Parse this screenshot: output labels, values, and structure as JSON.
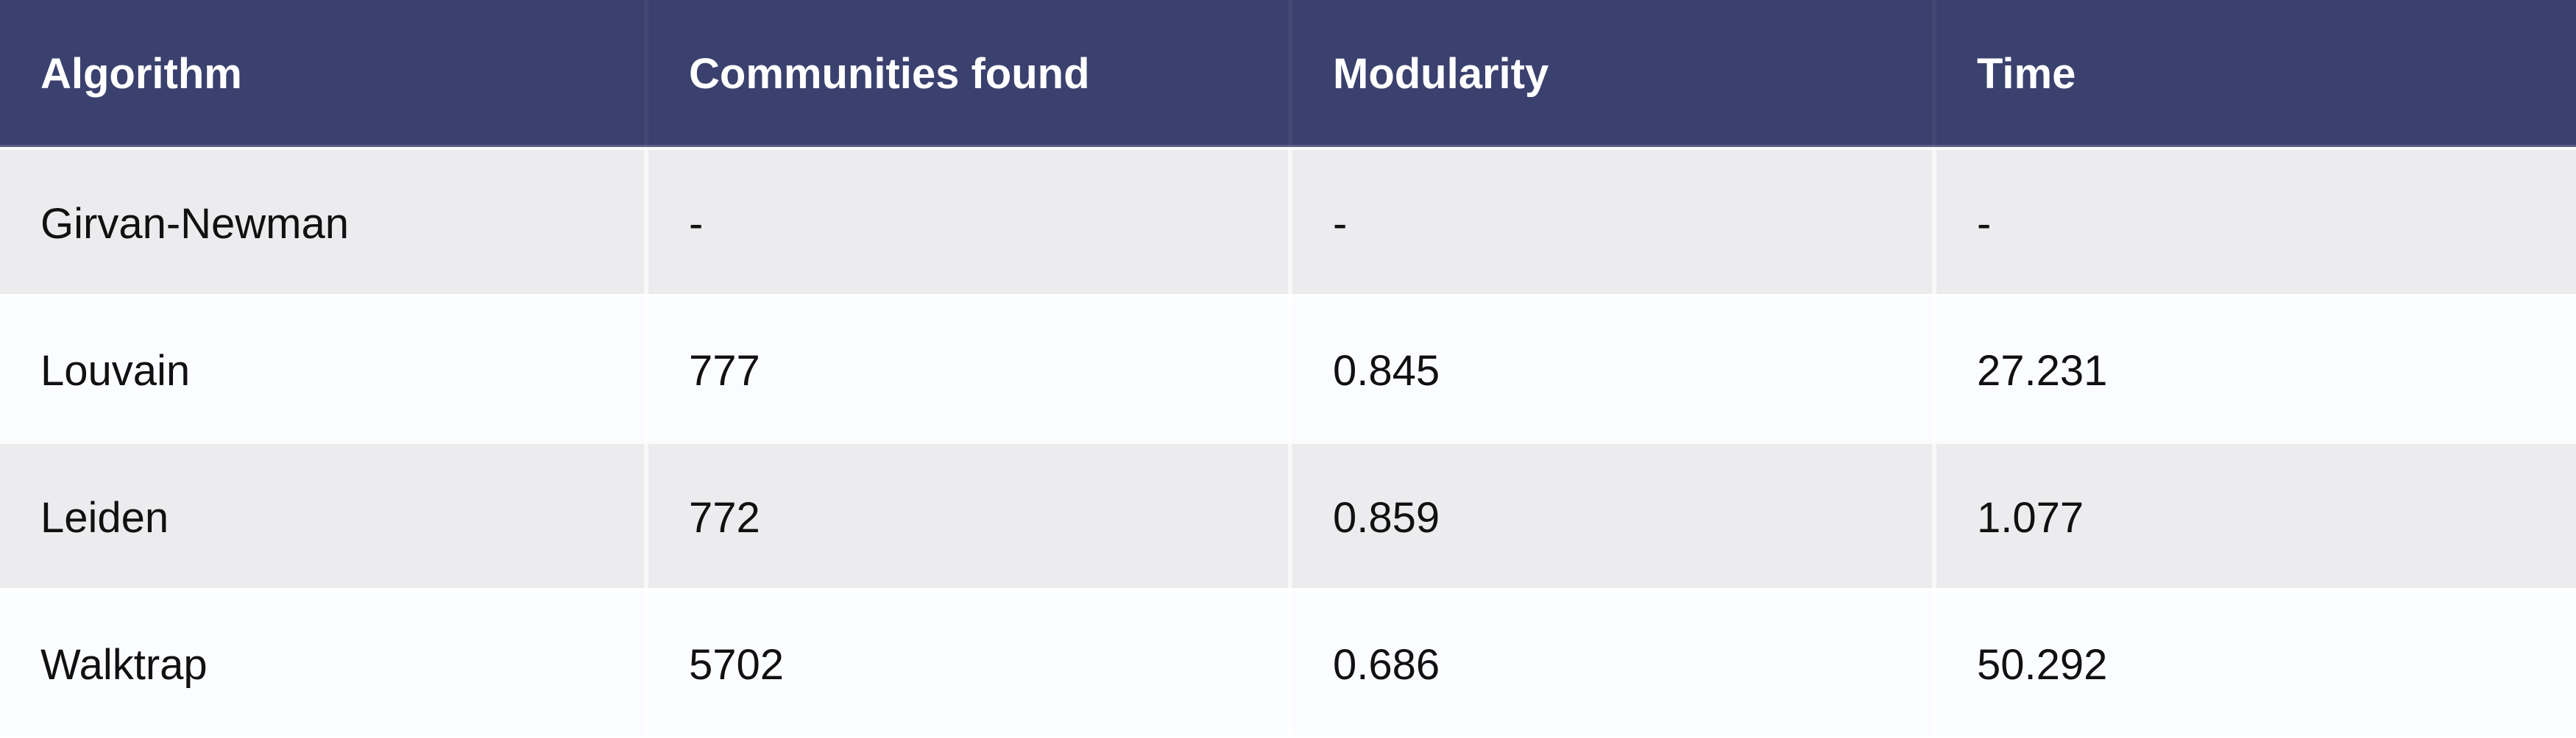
{
  "table": {
    "columns": [
      "Algorithm",
      "Communities found",
      "Modularity",
      "Time"
    ],
    "rows": [
      [
        "Girvan-Newman",
        "-",
        "-",
        "-"
      ],
      [
        "Louvain",
        "777",
        "0.845",
        "27.231"
      ],
      [
        "Leiden",
        "772",
        "0.859",
        "1.077"
      ],
      [
        "Walktrap",
        "5702",
        "0.686",
        "50.292"
      ]
    ]
  },
  "colors": {
    "header_background": "#3b416e",
    "header_text": "#ffffff",
    "row_shaded": "#ececee",
    "row_light": "#fbfcff",
    "body_text": "#111111"
  }
}
